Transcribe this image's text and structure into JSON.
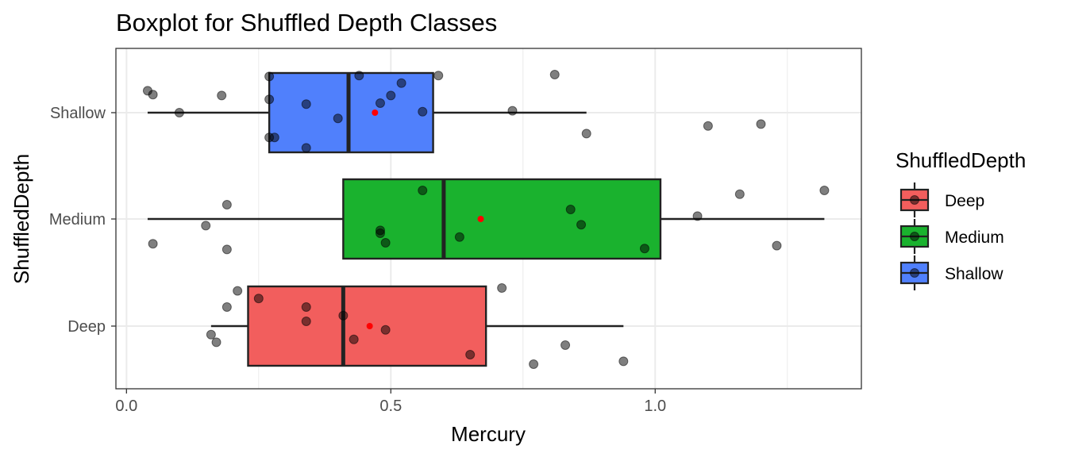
{
  "chart_data": {
    "type": "boxplot",
    "title": "Boxplot for Shuffled Depth Classes",
    "xlabel": "Mercury",
    "ylabel": "ShuffledDepth",
    "xlim": [
      -0.02,
      1.39
    ],
    "x_ticks": [
      0.0,
      0.5,
      1.0
    ],
    "x_tick_labels": [
      "0.0",
      "0.5",
      "1.0"
    ],
    "categories": [
      "Deep",
      "Medium",
      "Shallow"
    ],
    "grid": true,
    "legend": {
      "title": "ShuffledDepth",
      "position": "right",
      "entries": [
        "Deep",
        "Medium",
        "Shallow"
      ]
    },
    "colors": {
      "Deep": "#f25e5d",
      "Medium": "#1ab22e",
      "Shallow": "#5080fc",
      "mean": "#ff0000",
      "points": "#000000",
      "box_outline": "#222222",
      "grid": "#ebebeb"
    },
    "series": [
      {
        "name": "Deep",
        "whisker_low": 0.16,
        "q1": 0.23,
        "median": 0.41,
        "q3": 0.68,
        "whisker_high": 0.94,
        "mean": 0.46,
        "points": [
          {
            "x": 0.25,
            "y": 0.29
          },
          {
            "x": 0.21,
            "y": 0.37
          },
          {
            "x": 0.19,
            "y": 0.2
          },
          {
            "x": 0.34,
            "y": 0.2
          },
          {
            "x": 0.34,
            "y": 0.05
          },
          {
            "x": 0.41,
            "y": 0.11
          },
          {
            "x": 0.43,
            "y": -0.14
          },
          {
            "x": 0.49,
            "y": -0.04
          },
          {
            "x": 0.16,
            "y": -0.09
          },
          {
            "x": 0.17,
            "y": -0.17
          },
          {
            "x": 0.65,
            "y": -0.3
          },
          {
            "x": 0.71,
            "y": 0.4
          },
          {
            "x": 0.77,
            "y": -0.4
          },
          {
            "x": 0.83,
            "y": -0.2
          },
          {
            "x": 0.94,
            "y": -0.37
          }
        ]
      },
      {
        "name": "Medium",
        "whisker_low": 0.04,
        "q1": 0.41,
        "median": 0.6,
        "q3": 1.01,
        "whisker_high": 1.32,
        "mean": 0.67,
        "points": [
          {
            "x": 0.19,
            "y": 0.15
          },
          {
            "x": 0.15,
            "y": -0.07
          },
          {
            "x": 0.05,
            "y": -0.26
          },
          {
            "x": 0.19,
            "y": -0.32
          },
          {
            "x": 0.48,
            "y": -0.12
          },
          {
            "x": 0.48,
            "y": -0.15
          },
          {
            "x": 0.49,
            "y": -0.25
          },
          {
            "x": 0.56,
            "y": 0.3
          },
          {
            "x": 0.63,
            "y": -0.19
          },
          {
            "x": 0.84,
            "y": 0.1
          },
          {
            "x": 0.86,
            "y": -0.06
          },
          {
            "x": 0.98,
            "y": -0.31
          },
          {
            "x": 1.08,
            "y": 0.03
          },
          {
            "x": 1.16,
            "y": 0.26
          },
          {
            "x": 1.23,
            "y": -0.28
          },
          {
            "x": 1.32,
            "y": 0.3
          }
        ]
      },
      {
        "name": "Shallow",
        "whisker_low": 0.04,
        "q1": 0.27,
        "median": 0.42,
        "q3": 0.58,
        "whisker_high": 0.87,
        "mean": 0.47,
        "points": [
          {
            "x": 0.04,
            "y": 0.23
          },
          {
            "x": 0.05,
            "y": 0.19
          },
          {
            "x": 0.1,
            "y": 0.0
          },
          {
            "x": 0.18,
            "y": 0.18
          },
          {
            "x": 0.27,
            "y": 0.38
          },
          {
            "x": 0.27,
            "y": 0.14
          },
          {
            "x": 0.27,
            "y": -0.26
          },
          {
            "x": 0.28,
            "y": -0.26
          },
          {
            "x": 0.34,
            "y": 0.09
          },
          {
            "x": 0.34,
            "y": -0.37
          },
          {
            "x": 0.4,
            "y": -0.06
          },
          {
            "x": 0.44,
            "y": 0.39
          },
          {
            "x": 0.48,
            "y": 0.1
          },
          {
            "x": 0.5,
            "y": 0.18
          },
          {
            "x": 0.52,
            "y": 0.31
          },
          {
            "x": 0.56,
            "y": 0.01
          },
          {
            "x": 0.59,
            "y": 0.39
          },
          {
            "x": 0.73,
            "y": 0.02
          },
          {
            "x": 0.81,
            "y": 0.4
          },
          {
            "x": 0.87,
            "y": -0.22
          },
          {
            "x": 1.1,
            "y": -0.14
          },
          {
            "x": 1.2,
            "y": -0.12
          }
        ]
      }
    ]
  }
}
